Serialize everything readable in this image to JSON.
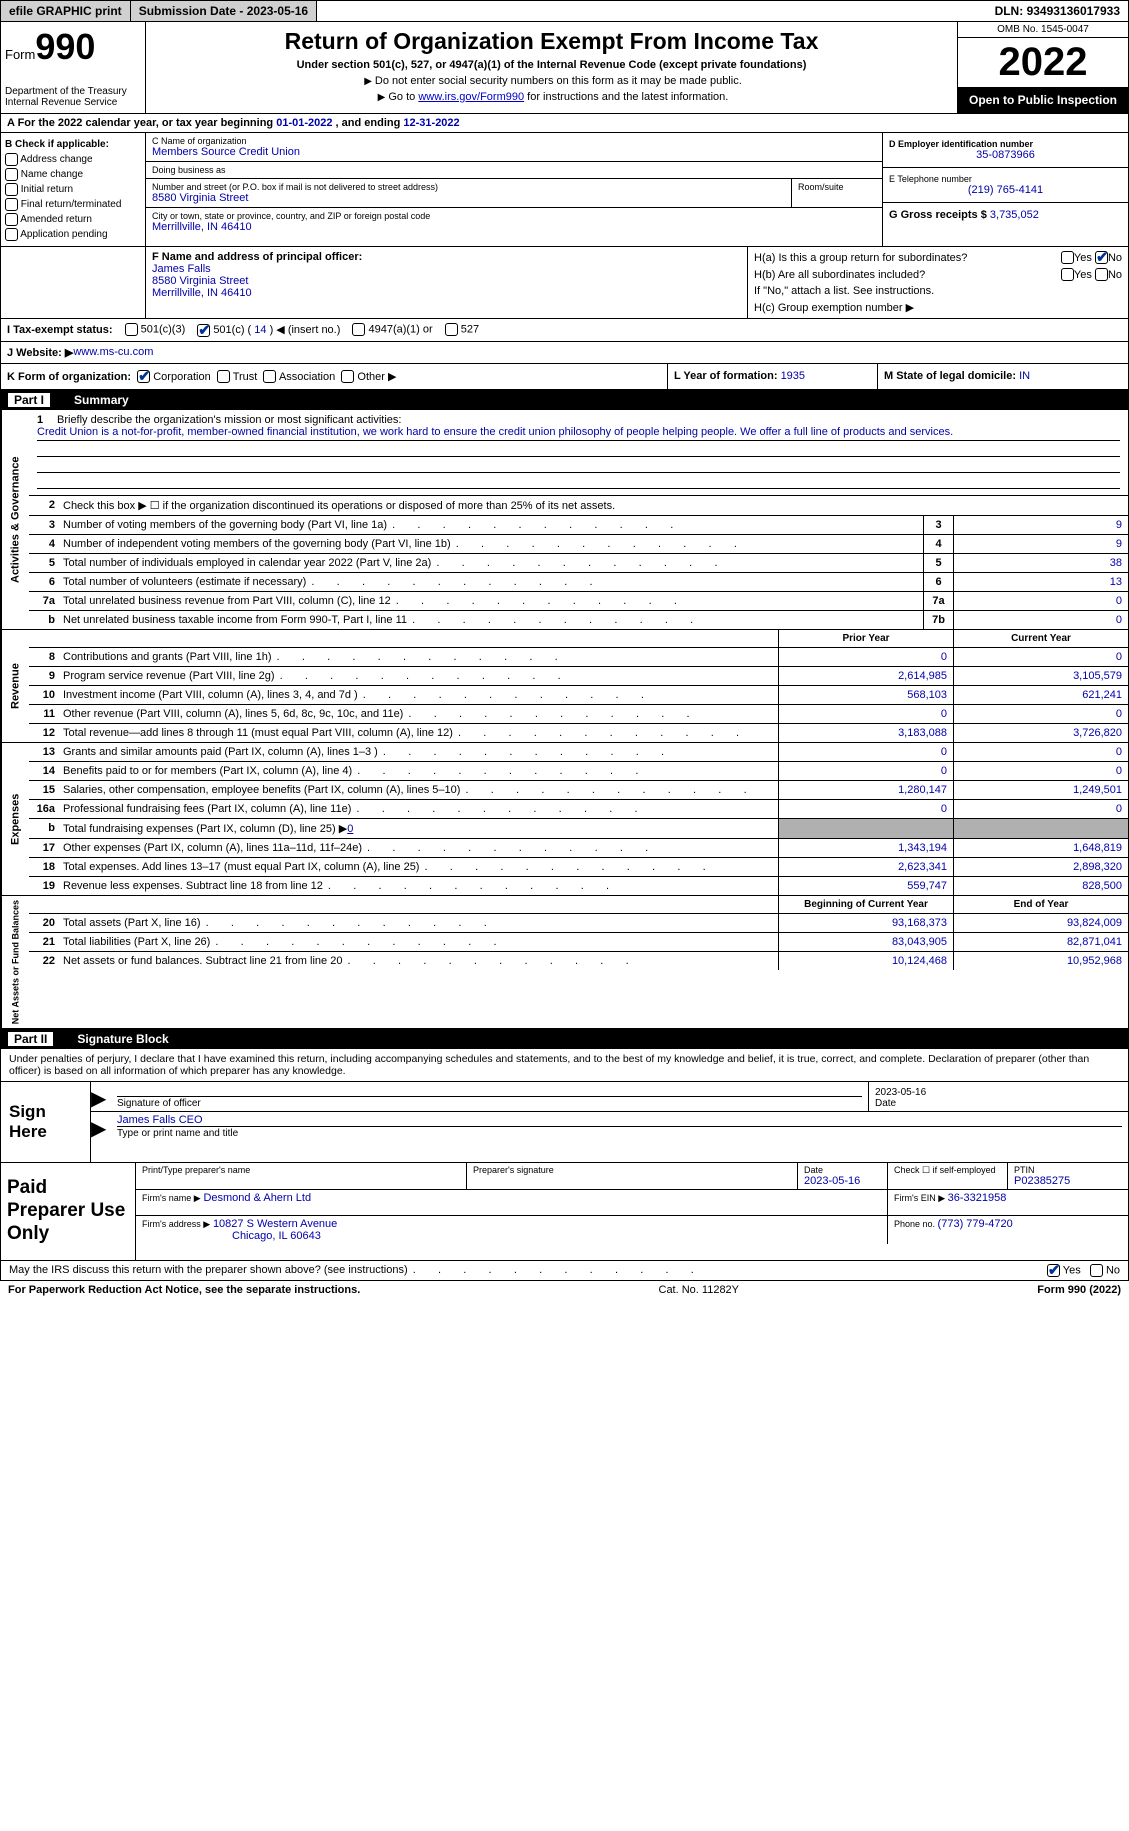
{
  "colors": {
    "link": "#0000cc",
    "value": "#0000aa",
    "black": "#000000",
    "white": "#ffffff",
    "grey_fill": "#b0b0b0",
    "btn_grey": "#d0d0d0"
  },
  "topbar": {
    "efile": "efile GRAPHIC print",
    "sub_date_lbl": "Submission Date - ",
    "sub_date": "2023-05-16",
    "dln_lbl": "DLN: ",
    "dln": "93493136017933"
  },
  "header": {
    "form_word": "Form",
    "form_num": "990",
    "dept": "Department of the Treasury",
    "irs": "Internal Revenue Service",
    "title": "Return of Organization Exempt From Income Tax",
    "subtitle": "Under section 501(c), 527, or 4947(a)(1) of the Internal Revenue Code (except private foundations)",
    "note1": "Do not enter social security numbers on this form as it may be made public.",
    "note2_pre": "Go to ",
    "note2_link": "www.irs.gov/Form990",
    "note2_post": " for instructions and the latest information.",
    "omb": "OMB No. 1545-0047",
    "year": "2022",
    "open": "Open to Public Inspection"
  },
  "cal_year": {
    "prefix": "A For the 2022 calendar year, or tax year beginning ",
    "begin": "01-01-2022",
    "mid": " , and ending ",
    "end": "12-31-2022"
  },
  "box_b": {
    "title": "B Check if applicable:",
    "opts": [
      "Address change",
      "Name change",
      "Initial return",
      "Final return/terminated",
      "Amended return",
      "Application pending"
    ]
  },
  "box_c": {
    "name_lbl": "C Name of organization",
    "name": "Members Source Credit Union",
    "dba_lbl": "Doing business as",
    "dba": "",
    "addr_lbl": "Number and street (or P.O. box if mail is not delivered to street address)",
    "room_lbl": "Room/suite",
    "addr": "8580 Virginia Street",
    "city_lbl": "City or town, state or province, country, and ZIP or foreign postal code",
    "city": "Merrillville, IN  46410"
  },
  "box_d": {
    "ein_lbl": "D Employer identification number",
    "ein": "35-0873966",
    "tel_lbl": "E Telephone number",
    "tel": "(219) 765-4141",
    "gross_lbl": "G Gross receipts $ ",
    "gross": "3,735,052"
  },
  "box_f": {
    "lbl": "F Name and address of principal officer:",
    "name": "James Falls",
    "addr1": "8580 Virginia Street",
    "addr2": "Merrillville, IN  46410"
  },
  "box_h": {
    "a": "H(a)  Is this a group return for subordinates?",
    "b": "H(b)  Are all subordinates included?",
    "b_note": "If \"No,\" attach a list. See instructions.",
    "c": "H(c)  Group exemption number ▶",
    "yes": "Yes",
    "no": "No"
  },
  "tax_status": {
    "lbl": "I Tax-exempt status:",
    "o1": "501(c)(3)",
    "o2_pre": "501(c) ( ",
    "o2_num": "14",
    "o2_post": " ) ◀ (insert no.)",
    "o3": "4947(a)(1) or",
    "o4": "527"
  },
  "website": {
    "lbl": "J Website: ▶",
    "val": " www.ms-cu.com"
  },
  "k_row": {
    "k": "K Form of organization:",
    "opts": [
      "Corporation",
      "Trust",
      "Association",
      "Other ▶"
    ],
    "l_lbl": "L Year of formation: ",
    "l_val": "1935",
    "m_lbl": "M State of legal domicile: ",
    "m_val": "IN"
  },
  "part1": {
    "num": "Part I",
    "title": "Summary"
  },
  "mission": {
    "num": "1",
    "lbl": "Briefly describe the organization's mission or most significant activities:",
    "text": "Credit Union is a not-for-profit, member-owned financial institution, we work hard to ensure the credit union philosophy of people helping people. We offer a full line of products and services."
  },
  "activities_side": "Activities & Governance",
  "revenue_side": "Revenue",
  "expenses_side": "Expenses",
  "netassets_side": "Net Assets or Fund Balances",
  "lines_simple": {
    "l2": {
      "n": "2",
      "t": "Check this box ▶ ☐ if the organization discontinued its operations or disposed of more than 25% of its net assets."
    },
    "l3": {
      "n": "3",
      "t": "Number of voting members of the governing body (Part VI, line 1a)",
      "box": "3",
      "v": "9"
    },
    "l4": {
      "n": "4",
      "t": "Number of independent voting members of the governing body (Part VI, line 1b)",
      "box": "4",
      "v": "9"
    },
    "l5": {
      "n": "5",
      "t": "Total number of individuals employed in calendar year 2022 (Part V, line 2a)",
      "box": "5",
      "v": "38"
    },
    "l6": {
      "n": "6",
      "t": "Total number of volunteers (estimate if necessary)",
      "box": "6",
      "v": "13"
    },
    "l7a": {
      "n": "7a",
      "t": "Total unrelated business revenue from Part VIII, column (C), line 12",
      "box": "7a",
      "v": "0"
    },
    "l7b": {
      "n": "b",
      "t": "Net unrelated business taxable income from Form 990-T, Part I, line 11",
      "box": "7b",
      "v": "0"
    }
  },
  "col_headers": {
    "prior": "Prior Year",
    "current": "Current Year",
    "boy": "Beginning of Current Year",
    "eoy": "End of Year"
  },
  "revenue_lines": [
    {
      "n": "8",
      "t": "Contributions and grants (Part VIII, line 1h)",
      "p": "0",
      "c": "0"
    },
    {
      "n": "9",
      "t": "Program service revenue (Part VIII, line 2g)",
      "p": "2,614,985",
      "c": "3,105,579"
    },
    {
      "n": "10",
      "t": "Investment income (Part VIII, column (A), lines 3, 4, and 7d )",
      "p": "568,103",
      "c": "621,241"
    },
    {
      "n": "11",
      "t": "Other revenue (Part VIII, column (A), lines 5, 6d, 8c, 9c, 10c, and 11e)",
      "p": "0",
      "c": "0"
    },
    {
      "n": "12",
      "t": "Total revenue—add lines 8 through 11 (must equal Part VIII, column (A), line 12)",
      "p": "3,183,088",
      "c": "3,726,820"
    }
  ],
  "expense_lines": [
    {
      "n": "13",
      "t": "Grants and similar amounts paid (Part IX, column (A), lines 1–3 )",
      "p": "0",
      "c": "0"
    },
    {
      "n": "14",
      "t": "Benefits paid to or for members (Part IX, column (A), line 4)",
      "p": "0",
      "c": "0"
    },
    {
      "n": "15",
      "t": "Salaries, other compensation, employee benefits (Part IX, column (A), lines 5–10)",
      "p": "1,280,147",
      "c": "1,249,501"
    },
    {
      "n": "16a",
      "t": "Professional fundraising fees (Part IX, column (A), line 11e)",
      "p": "0",
      "c": "0"
    },
    {
      "n": "b",
      "t": "Total fundraising expenses (Part IX, column (D), line 25) ▶",
      "inline": "0",
      "grey": true
    },
    {
      "n": "17",
      "t": "Other expenses (Part IX, column (A), lines 11a–11d, 11f–24e)",
      "p": "1,343,194",
      "c": "1,648,819"
    },
    {
      "n": "18",
      "t": "Total expenses. Add lines 13–17 (must equal Part IX, column (A), line 25)",
      "p": "2,623,341",
      "c": "2,898,320"
    },
    {
      "n": "19",
      "t": "Revenue less expenses. Subtract line 18 from line 12",
      "p": "559,747",
      "c": "828,500"
    }
  ],
  "asset_lines": [
    {
      "n": "20",
      "t": "Total assets (Part X, line 16)",
      "p": "93,168,373",
      "c": "93,824,009"
    },
    {
      "n": "21",
      "t": "Total liabilities (Part X, line 26)",
      "p": "83,043,905",
      "c": "82,871,041"
    },
    {
      "n": "22",
      "t": "Net assets or fund balances. Subtract line 21 from line 20",
      "p": "10,124,468",
      "c": "10,952,968"
    }
  ],
  "part2": {
    "num": "Part II",
    "title": "Signature Block"
  },
  "sig_declaration": "Under penalties of perjury, I declare that I have examined this return, including accompanying schedules and statements, and to the best of my knowledge and belief, it is true, correct, and complete. Declaration of preparer (other than officer) is based on all information of which preparer has any knowledge.",
  "sign": {
    "here": "Sign Here",
    "sig_lbl": "Signature of officer",
    "date_lbl": "Date",
    "date_val": "2023-05-16",
    "name_val": "James Falls CEO",
    "name_lbl": "Type or print name and title"
  },
  "prep": {
    "title": "Paid Preparer Use Only",
    "pname_lbl": "Print/Type preparer's name",
    "psig_lbl": "Preparer's signature",
    "pdate_lbl": "Date",
    "pdate": "2023-05-16",
    "self_lbl": "Check ☐ if self-employed",
    "ptin_lbl": "PTIN",
    "ptin": "P02385275",
    "firm_name_lbl": "Firm's name ▶",
    "firm_name": "Desmond & Ahern Ltd",
    "firm_ein_lbl": "Firm's EIN ▶ ",
    "firm_ein": "36-3321958",
    "firm_addr_lbl": "Firm's address ▶",
    "firm_addr1": "10827 S Western Avenue",
    "firm_addr2": "Chicago, IL  60643",
    "phone_lbl": "Phone no. ",
    "phone": "(773) 779-4720"
  },
  "discuss": {
    "text": "May the IRS discuss this return with the preparer shown above? (see instructions)",
    "yes": "Yes",
    "no": "No"
  },
  "footer": {
    "left": "For Paperwork Reduction Act Notice, see the separate instructions.",
    "mid": "Cat. No. 11282Y",
    "right": "Form 990 (2022)"
  }
}
